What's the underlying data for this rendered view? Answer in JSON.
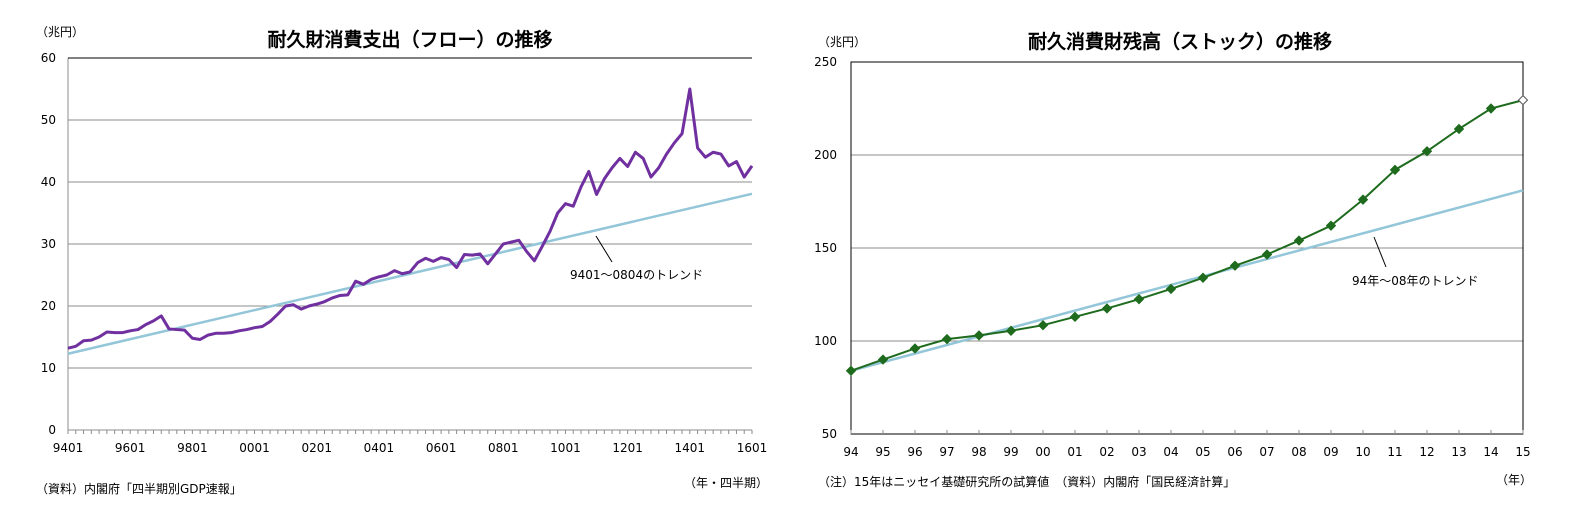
{
  "chart_data": [
    {
      "type": "line",
      "title": "耐久財消費支出（フロー）の推移",
      "unit_label": "（兆円）",
      "xlabel": "（年・四半期）",
      "source": "（資料）内閣府「四半期別GDP速報」",
      "ylim": [
        0,
        60
      ],
      "yticks": [
        0,
        10,
        20,
        30,
        40,
        50,
        60
      ],
      "xtick_labels": [
        "9401",
        "9601",
        "9801",
        "0001",
        "0201",
        "0401",
        "0601",
        "0801",
        "1001",
        "1201",
        "1401",
        "1601"
      ],
      "grid": true,
      "start_quarter": "9401",
      "end_quarter": "1601",
      "series": [
        {
          "color": "#7030a0",
          "values": [
            13.2,
            13.5,
            14.4,
            14.5,
            15.0,
            15.8,
            15.7,
            15.7,
            16.0,
            16.2,
            17.0,
            17.6,
            18.4,
            16.3,
            16.2,
            16.1,
            14.8,
            14.6,
            15.3,
            15.6,
            15.6,
            15.7,
            16.0,
            16.2,
            16.5,
            16.7,
            17.5,
            18.7,
            20.0,
            20.2,
            19.5,
            20.0,
            20.3,
            20.7,
            21.3,
            21.7,
            21.8,
            24.0,
            23.5,
            24.3,
            24.7,
            25.0,
            25.7,
            25.2,
            25.5,
            27.0,
            27.7,
            27.2,
            27.8,
            27.5,
            26.2,
            28.3,
            28.2,
            28.4,
            26.8,
            28.4,
            30.0,
            30.3,
            30.6,
            28.8,
            27.3,
            29.6,
            32.0,
            35.0,
            36.5,
            36.1,
            39.2,
            41.7,
            38.0,
            40.5,
            42.3,
            43.8,
            42.5,
            44.8,
            43.8,
            40.8,
            42.3,
            44.5,
            46.3,
            47.8,
            55.0,
            45.5,
            44.0,
            44.8,
            44.5,
            42.6,
            43.3,
            40.8,
            42.6
          ]
        },
        {
          "name": "9401～0804のトレンド",
          "color": "#93c6d8",
          "trend": [
            12.3,
            38.1
          ]
        }
      ]
    },
    {
      "type": "line",
      "title": "耐久消費財残高（ストック）の推移",
      "unit_label": "（兆円）",
      "xlabel": "（年）",
      "note": "（注）15年はニッセイ基礎研究所の試算値　（資料）内閣府「国民経済計算」",
      "ylim": [
        50,
        250
      ],
      "yticks": [
        50,
        100,
        150,
        200,
        250
      ],
      "categories": [
        "94",
        "95",
        "96",
        "97",
        "98",
        "99",
        "00",
        "01",
        "02",
        "03",
        "04",
        "05",
        "06",
        "07",
        "08",
        "09",
        "10",
        "11",
        "12",
        "13",
        "14",
        "15"
      ],
      "grid": true,
      "series": [
        {
          "color": "#1e6b1e",
          "marker": "diamond",
          "estimated_last_point": true,
          "values": [
            84,
            90,
            96,
            101,
            103,
            105.5,
            108.5,
            113,
            117.5,
            122.5,
            128,
            134,
            140.5,
            146.5,
            154,
            162,
            176,
            192,
            202,
            214,
            225,
            229.5
          ]
        },
        {
          "name": "94年～08年のトレンド",
          "color": "#93c6d8",
          "trend": [
            84,
            181
          ]
        }
      ]
    }
  ]
}
